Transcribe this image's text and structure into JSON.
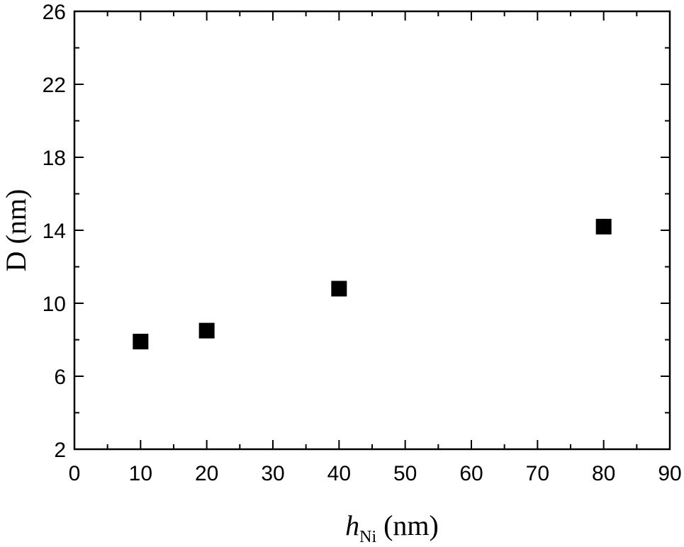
{
  "chart_data": {
    "type": "scatter",
    "title": "",
    "xlabel": "h",
    "xlabel_subscript": "Ni",
    "xlabel_unit": "(nm)",
    "ylabel": "D (nm)",
    "xlim": [
      0,
      90
    ],
    "ylim": [
      2,
      26
    ],
    "x_ticks": [
      0,
      10,
      20,
      30,
      40,
      50,
      60,
      70,
      80,
      90
    ],
    "y_ticks": [
      2,
      6,
      10,
      14,
      18,
      22,
      26
    ],
    "x_minor_step": 5,
    "y_minor_step": 2,
    "grid": false,
    "marker": "square",
    "marker_color": "#000000",
    "series": [
      {
        "points": [
          {
            "x": 10,
            "y": 7.9
          },
          {
            "x": 20,
            "y": 8.5
          },
          {
            "x": 40,
            "y": 10.8
          },
          {
            "x": 80,
            "y": 14.2
          }
        ]
      }
    ]
  }
}
